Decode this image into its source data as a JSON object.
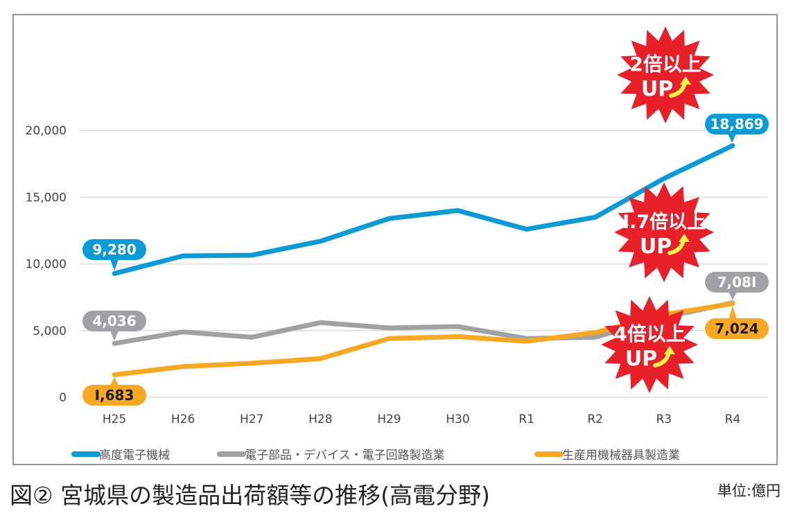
{
  "chart_data": {
    "type": "line",
    "title": "図② 宮城県の製造品出荷額等の推移(高電分野)",
    "unit_label": "単位:億円",
    "xlabel": "",
    "ylabel": "",
    "categories": [
      "H25",
      "H26",
      "H27",
      "H28",
      "H29",
      "H30",
      "R1",
      "R2",
      "R3",
      "R4"
    ],
    "ylim": [
      0,
      25000
    ],
    "yticks": [
      0,
      5000,
      10000,
      15000,
      20000
    ],
    "ytick_labels": [
      "0",
      "5,000",
      "10,000",
      "15,000",
      "20,000"
    ],
    "grid": true,
    "legend_position": "bottom",
    "series": [
      {
        "name": "高度電子機械",
        "color": "#0a9bd6",
        "values": [
          9280,
          10600,
          10650,
          11700,
          13400,
          14000,
          12600,
          13500,
          16400,
          18869
        ],
        "labels": [
          {
            "index": 0,
            "text": "9,280"
          },
          {
            "index": 9,
            "text": "18,869"
          }
        ],
        "label_text_color": "#ffffff"
      },
      {
        "name": "電子部品・デバイス・電子回路製造業",
        "color": "#a0a1a4",
        "values": [
          4036,
          4900,
          4500,
          5600,
          5200,
          5300,
          4400,
          4500,
          6000,
          7081
        ],
        "labels": [
          {
            "index": 0,
            "text": "4,036"
          },
          {
            "index": 9,
            "text": "7,08I"
          }
        ],
        "label_text_color": "#ffffff"
      },
      {
        "name": "生産用機械器具製造業",
        "color": "#f7a823",
        "values": [
          1683,
          2300,
          2550,
          2900,
          4400,
          4550,
          4200,
          4850,
          6200,
          7024
        ],
        "labels": [
          {
            "index": 0,
            "text": "I,683"
          },
          {
            "index": 9,
            "text": "7,024"
          }
        ],
        "label_text_color": "#1a1a1a"
      }
    ],
    "annotations": [
      {
        "line1": "2倍以上",
        "line2": "UP",
        "color": "#e8202a",
        "series": "高度電子機械"
      },
      {
        "line1": "I.7倍以上",
        "line2": "UP",
        "color": "#e8202a",
        "series": "電子部品・デバイス・電子回路製造業"
      },
      {
        "line1": "4倍以上",
        "line2": "UP",
        "color": "#e8202a",
        "series": "生産用機械器具製造業"
      }
    ]
  },
  "arrow_icon": "curved-up-arrow-icon",
  "arrow_color": "#fff14a"
}
